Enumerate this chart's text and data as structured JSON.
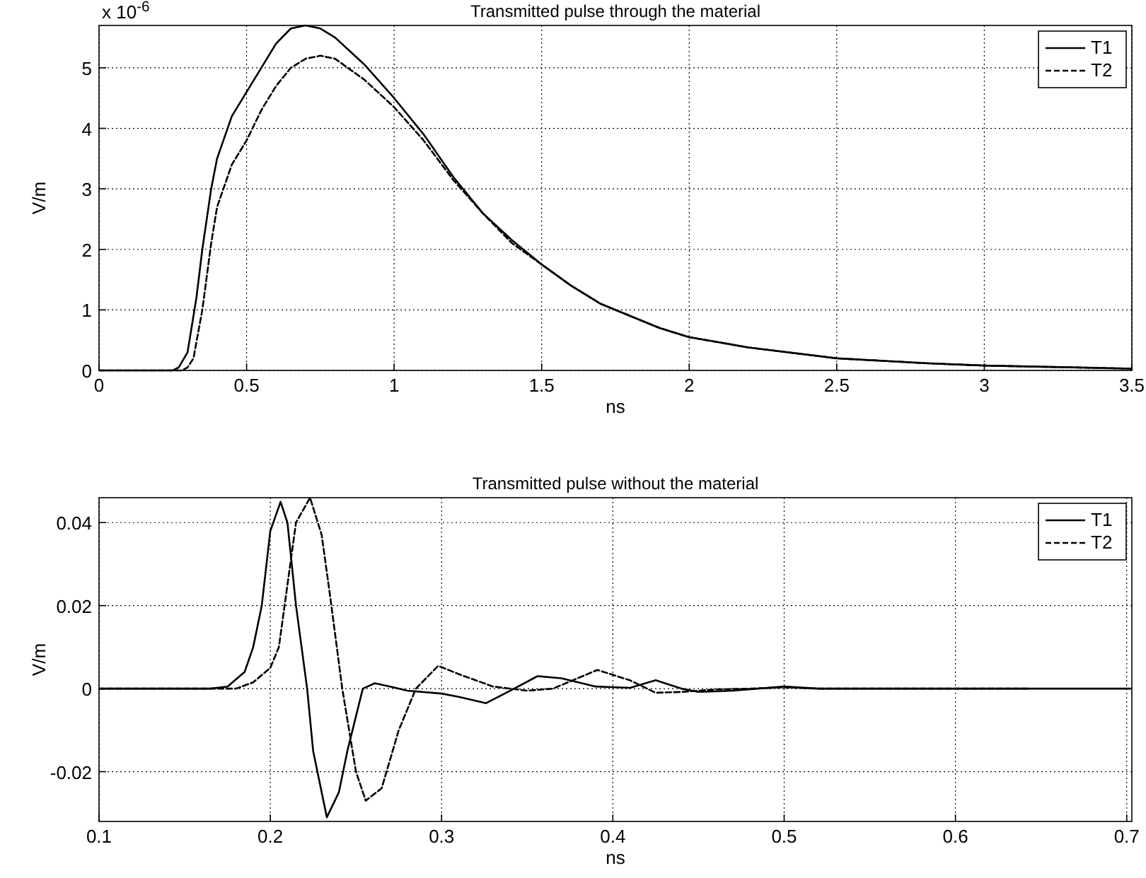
{
  "chart_data": [
    {
      "type": "line",
      "title": "Transmitted pulse through the material",
      "xlabel": "ns",
      "ylabel": "V/m",
      "annotations": [
        "x 10$^{-6}$"
      ],
      "xlim": [
        0,
        3.5
      ],
      "xticks": [
        0,
        0.5,
        1,
        1.5,
        2,
        2.5,
        3,
        3.5
      ],
      "ylim": [
        0,
        5.7
      ],
      "yticks": [
        0,
        1,
        2,
        3,
        4,
        5
      ],
      "grid": true,
      "legend": "top right",
      "marker": "none",
      "series": [
        {
          "name": "T1",
          "color": "#000000",
          "line_style": "solid",
          "x": [
            0,
            0.25,
            0.27,
            0.3,
            0.33,
            0.35,
            0.38,
            0.4,
            0.45,
            0.5,
            0.55,
            0.6,
            0.65,
            0.7,
            0.75,
            0.8,
            0.9,
            1.0,
            1.1,
            1.2,
            1.3,
            1.4,
            1.5,
            1.6,
            1.7,
            1.8,
            1.9,
            2.0,
            2.2,
            2.5,
            2.8,
            3.0,
            3.5
          ],
          "values": [
            0,
            0,
            0.05,
            0.3,
            1.2,
            2.0,
            3.0,
            3.5,
            4.2,
            4.6,
            5.0,
            5.4,
            5.65,
            5.7,
            5.65,
            5.5,
            5.05,
            4.5,
            3.9,
            3.2,
            2.6,
            2.15,
            1.75,
            1.4,
            1.1,
            0.9,
            0.7,
            0.55,
            0.38,
            0.2,
            0.12,
            0.08,
            0.03
          ]
        },
        {
          "name": "T2",
          "color": "#000000",
          "line_style": "dashed",
          "x": [
            0,
            0.28,
            0.3,
            0.32,
            0.35,
            0.38,
            0.4,
            0.45,
            0.5,
            0.55,
            0.6,
            0.65,
            0.7,
            0.75,
            0.8,
            0.9,
            1.0,
            1.1,
            1.2,
            1.3,
            1.4,
            1.5,
            1.6,
            1.7,
            1.8,
            1.9,
            2.0,
            2.2,
            2.5,
            2.8,
            3.0,
            3.5
          ],
          "values": [
            0,
            0,
            0.05,
            0.2,
            1.0,
            2.1,
            2.7,
            3.4,
            3.8,
            4.3,
            4.7,
            5.0,
            5.15,
            5.2,
            5.15,
            4.8,
            4.35,
            3.8,
            3.15,
            2.6,
            2.1,
            1.75,
            1.4,
            1.1,
            0.9,
            0.7,
            0.55,
            0.38,
            0.2,
            0.12,
            0.08,
            0.03
          ]
        }
      ]
    },
    {
      "type": "line",
      "title": "Transmitted pulse without the material",
      "xlabel": "ns",
      "ylabel": "V/m",
      "xlim": [
        0.1,
        0.703
      ],
      "xticks": [
        0.1,
        0.2,
        0.3,
        0.4,
        0.5,
        0.6,
        0.7
      ],
      "ylim": [
        -0.032,
        0.046
      ],
      "yticks": [
        -0.02,
        0,
        0.02,
        0.04
      ],
      "grid": true,
      "legend": "top right",
      "marker": "none",
      "series": [
        {
          "name": "T1",
          "color": "#000000",
          "line_style": "solid",
          "x": [
            0.1,
            0.165,
            0.175,
            0.185,
            0.19,
            0.195,
            0.2,
            0.206,
            0.21,
            0.215,
            0.2215,
            0.225,
            0.233,
            0.24,
            0.245,
            0.254,
            0.261,
            0.27,
            0.28,
            0.3,
            0.31,
            0.326,
            0.34,
            0.356,
            0.37,
            0.39,
            0.41,
            0.425,
            0.44,
            0.45,
            0.47,
            0.5,
            0.52,
            0.703
          ],
          "values": [
            0,
            0,
            0.0005,
            0.004,
            0.01,
            0.02,
            0.038,
            0.045,
            0.04,
            0.02,
            0,
            -0.015,
            -0.031,
            -0.025,
            -0.015,
            0,
            0.0013,
            0.0005,
            -0.0005,
            -0.0012,
            -0.002,
            -0.0035,
            -0.0005,
            0.003,
            0.0025,
            0.0005,
            0.0002,
            0.002,
            0,
            -0.0008,
            -0.0005,
            0.0005,
            0,
            0
          ]
        },
        {
          "name": "T2",
          "color": "#000000",
          "line_style": "dashed",
          "x": [
            0.1,
            0.18,
            0.19,
            0.2,
            0.205,
            0.21,
            0.215,
            0.2232,
            0.23,
            0.235,
            0.242,
            0.25,
            0.2557,
            0.265,
            0.275,
            0.285,
            0.298,
            0.31,
            0.33,
            0.35,
            0.365,
            0.391,
            0.41,
            0.425,
            0.44,
            0.46,
            0.48,
            0.5,
            0.52,
            0.643
          ],
          "values": [
            0,
            0,
            0.0015,
            0.005,
            0.01,
            0.025,
            0.04,
            0.046,
            0.037,
            0.022,
            0,
            -0.02,
            -0.027,
            -0.024,
            -0.01,
            0,
            0.0055,
            0.0035,
            0.0005,
            -0.0005,
            0,
            0.0045,
            0.002,
            -0.001,
            -0.0008,
            -0.0002,
            0,
            0.0003,
            0,
            0
          ]
        }
      ]
    }
  ]
}
